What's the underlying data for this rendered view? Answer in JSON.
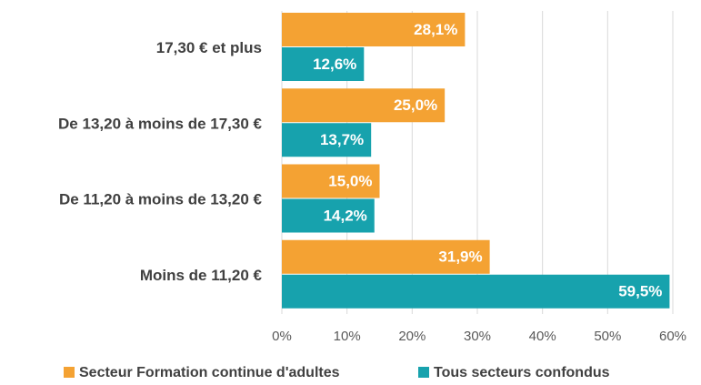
{
  "chart_data": {
    "type": "bar",
    "orientation": "horizontal",
    "categories": [
      "17,30 € et plus",
      "De 13,20 à moins de 17,30 €",
      "De 11,20 à moins de 13,20 €",
      "Moins de 11,20 €"
    ],
    "series": [
      {
        "name": "Secteur Formation continue d'adultes",
        "color": "#f4a233",
        "values": [
          28.1,
          25.0,
          15.0,
          31.9
        ],
        "value_labels": [
          "28,1%",
          "25,0%",
          "15,0%",
          "31,9%"
        ]
      },
      {
        "name": "Tous secteurs confondus",
        "color": "#17a2ad",
        "values": [
          12.6,
          13.7,
          14.2,
          59.5
        ],
        "value_labels": [
          "12,6%",
          "13,7%",
          "14,2%",
          "59,5%"
        ]
      }
    ],
    "xlim": [
      0,
      60
    ],
    "xticks": [
      {
        "value": 0,
        "label": "0%"
      },
      {
        "value": 10,
        "label": "10%"
      },
      {
        "value": 20,
        "label": "20%"
      },
      {
        "value": 30,
        "label": "30%"
      },
      {
        "value": 40,
        "label": "40%"
      },
      {
        "value": 50,
        "label": "50%"
      },
      {
        "value": 60,
        "label": "60%"
      }
    ],
    "grid": true,
    "legend": "bottom"
  }
}
